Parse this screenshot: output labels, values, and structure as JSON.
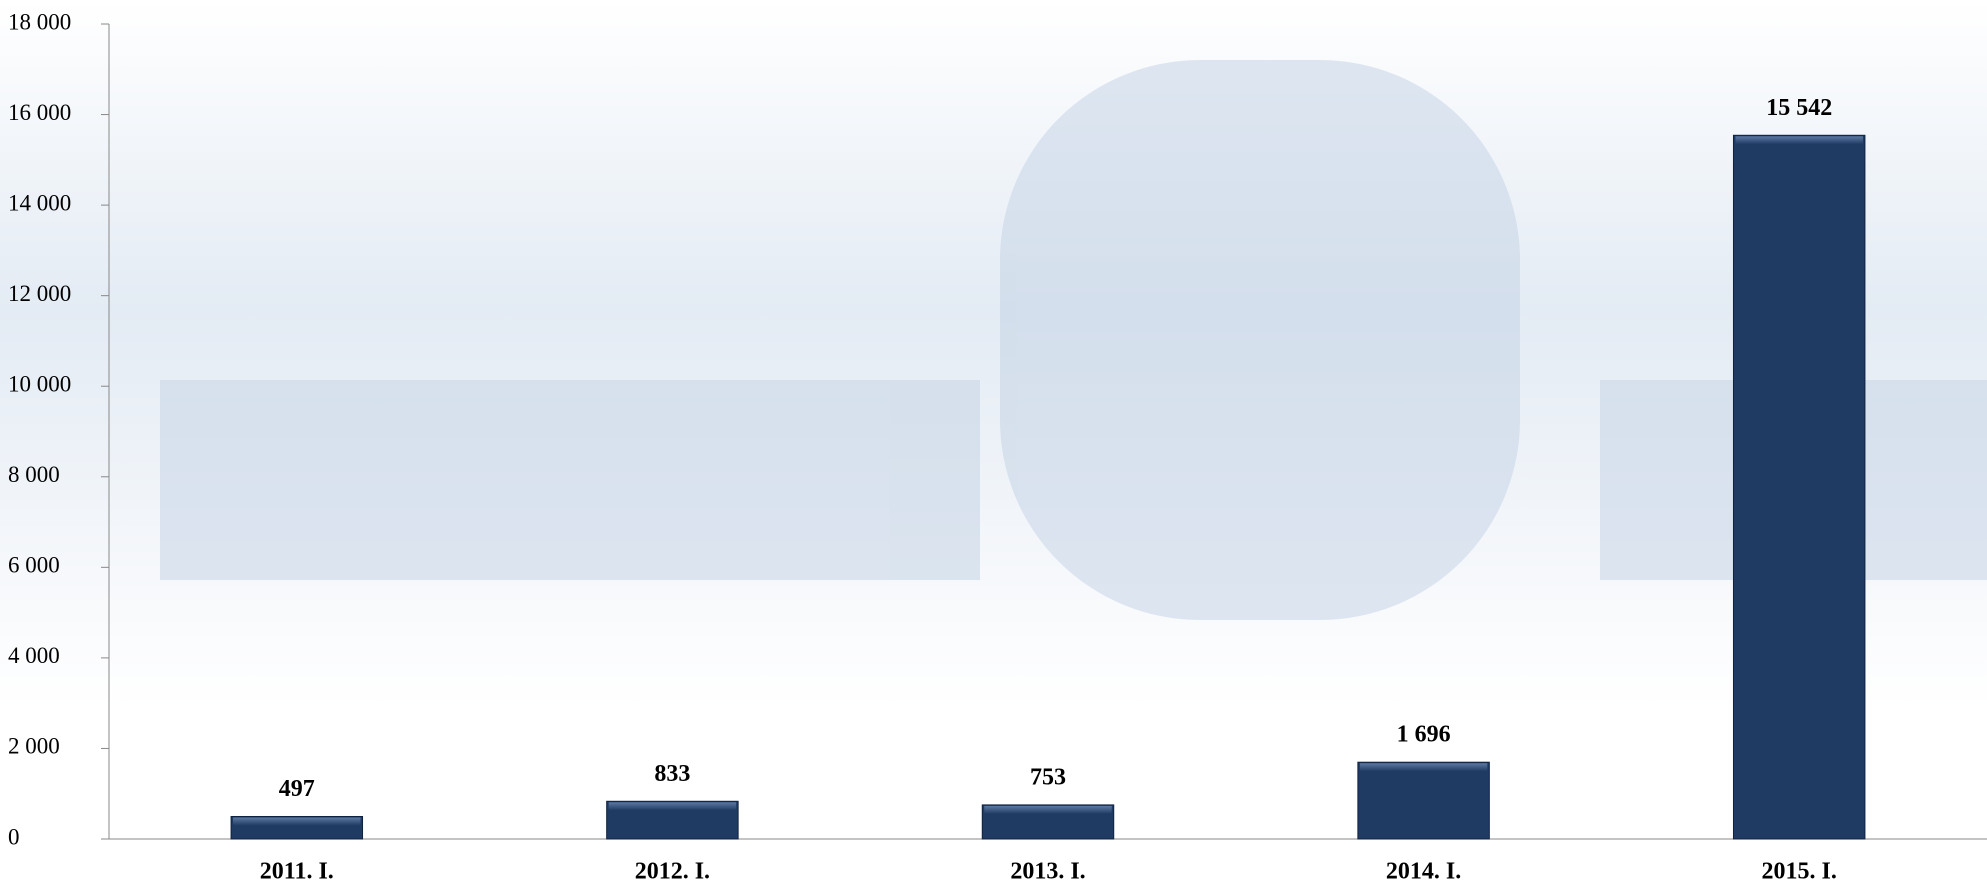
{
  "chart_data": {
    "type": "bar",
    "categories": [
      "2011. I.",
      "2012. I.",
      "2013. I.",
      "2014. I.",
      "2015. I."
    ],
    "values": [
      497,
      833,
      753,
      1696,
      15542
    ],
    "value_labels": [
      "497",
      "833",
      "753",
      "1 696",
      "15 542"
    ],
    "color": "#1f3a63",
    "ylim": [
      0,
      18000
    ],
    "yticks": [
      0,
      {
        "value": 2000,
        "label": "2 000"
      },
      {
        "value": 4000,
        "label": "4 000"
      },
      {
        "value": 6000,
        "label": "6 000"
      },
      {
        "value": 8000,
        "label": "8 000"
      },
      {
        "value": 10000,
        "label": "10 000"
      },
      {
        "value": 12000,
        "label": "12 000"
      },
      {
        "value": 14000,
        "label": "14 000"
      },
      {
        "value": 16000,
        "label": "16 000"
      },
      {
        "value": 18000,
        "label": "18 000"
      }
    ],
    "grid": false
  }
}
